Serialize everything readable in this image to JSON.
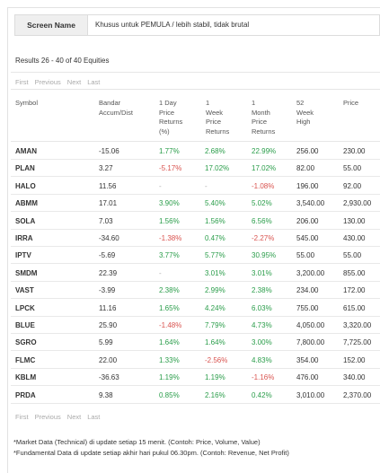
{
  "screen": {
    "label": "Screen Name",
    "value": "Khusus untuk PEMULA / lebih stabil, tidak brutal"
  },
  "results_text": "Results 26 - 40 of 40 Equities",
  "pager": {
    "first": "First",
    "previous": "Previous",
    "next": "Next",
    "last": "Last"
  },
  "columns": [
    [
      "Symbol"
    ],
    [
      "Bandar",
      "Accum/Dist"
    ],
    [
      "1 Day",
      "Price",
      "Returns",
      "(%)"
    ],
    [
      "1",
      "Week",
      "Price",
      "Returns"
    ],
    [
      "1",
      "Month",
      "Price",
      "Returns"
    ],
    [
      "52",
      "Week",
      "High"
    ],
    [
      "Price"
    ]
  ],
  "rows": [
    {
      "symbol": "AMAN",
      "bandar": "-15.06",
      "d1": "1.77%",
      "d1s": "pos",
      "w1": "2.68%",
      "w1s": "pos",
      "m1": "22.99%",
      "m1s": "pos",
      "high": "256.00",
      "price": "230.00"
    },
    {
      "symbol": "PLAN",
      "bandar": "3.27",
      "d1": "-5.17%",
      "d1s": "neg",
      "w1": "17.02%",
      "w1s": "pos",
      "m1": "17.02%",
      "m1s": "pos",
      "high": "82.00",
      "price": "55.00"
    },
    {
      "symbol": "HALO",
      "bandar": "11.56",
      "d1": "-",
      "d1s": "muted",
      "w1": "-",
      "w1s": "muted",
      "m1": "-1.08%",
      "m1s": "neg",
      "high": "196.00",
      "price": "92.00"
    },
    {
      "symbol": "ABMM",
      "bandar": "17.01",
      "d1": "3.90%",
      "d1s": "pos",
      "w1": "5.40%",
      "w1s": "pos",
      "m1": "5.02%",
      "m1s": "pos",
      "high": "3,540.00",
      "price": "2,930.00"
    },
    {
      "symbol": "SOLA",
      "bandar": "7.03",
      "d1": "1.56%",
      "d1s": "pos",
      "w1": "1.56%",
      "w1s": "pos",
      "m1": "6.56%",
      "m1s": "pos",
      "high": "206.00",
      "price": "130.00"
    },
    {
      "symbol": "IRRA",
      "bandar": "-34.60",
      "d1": "-1.38%",
      "d1s": "neg",
      "w1": "0.47%",
      "w1s": "pos",
      "m1": "-2.27%",
      "m1s": "neg",
      "high": "545.00",
      "price": "430.00"
    },
    {
      "symbol": "IPTV",
      "bandar": "-5.69",
      "d1": "3.77%",
      "d1s": "pos",
      "w1": "5.77%",
      "w1s": "pos",
      "m1": "30.95%",
      "m1s": "pos",
      "high": "55.00",
      "price": "55.00"
    },
    {
      "symbol": "SMDM",
      "bandar": "22.39",
      "d1": "-",
      "d1s": "muted",
      "w1": "3.01%",
      "w1s": "pos",
      "m1": "3.01%",
      "m1s": "pos",
      "high": "3,200.00",
      "price": "855.00"
    },
    {
      "symbol": "VAST",
      "bandar": "-3.99",
      "d1": "2.38%",
      "d1s": "pos",
      "w1": "2.99%",
      "w1s": "pos",
      "m1": "2.38%",
      "m1s": "pos",
      "high": "234.00",
      "price": "172.00"
    },
    {
      "symbol": "LPCK",
      "bandar": "11.16",
      "d1": "1.65%",
      "d1s": "pos",
      "w1": "4.24%",
      "w1s": "pos",
      "m1": "6.03%",
      "m1s": "pos",
      "high": "755.00",
      "price": "615.00"
    },
    {
      "symbol": "BLUE",
      "bandar": "25.90",
      "d1": "-1.48%",
      "d1s": "neg",
      "w1": "7.79%",
      "w1s": "pos",
      "m1": "4.73%",
      "m1s": "pos",
      "high": "4,050.00",
      "price": "3,320.00"
    },
    {
      "symbol": "SGRO",
      "bandar": "5.99",
      "d1": "1.64%",
      "d1s": "pos",
      "w1": "1.64%",
      "w1s": "pos",
      "m1": "3.00%",
      "m1s": "pos",
      "high": "7,800.00",
      "price": "7,725.00"
    },
    {
      "symbol": "FLMC",
      "bandar": "22.00",
      "d1": "1.33%",
      "d1s": "pos",
      "w1": "-2.56%",
      "w1s": "neg",
      "m1": "4.83%",
      "m1s": "pos",
      "high": "354.00",
      "price": "152.00"
    },
    {
      "symbol": "KBLM",
      "bandar": "-36.63",
      "d1": "1.19%",
      "d1s": "pos",
      "w1": "1.19%",
      "w1s": "pos",
      "m1": "-1.16%",
      "m1s": "neg",
      "high": "476.00",
      "price": "340.00"
    },
    {
      "symbol": "PRDA",
      "bandar": "9.38",
      "d1": "0.85%",
      "d1s": "pos",
      "w1": "2.16%",
      "w1s": "pos",
      "m1": "0.42%",
      "m1s": "pos",
      "high": "3,010.00",
      "price": "2,370.00"
    }
  ],
  "footnotes": [
    "*Market Data (Technical) di update setiap 15 menit. (Contoh: Price, Volume, Value)",
    "*Fundamental Data di update setiap akhir hari pukul 06.30pm. (Contoh: Revenue, Net Profit)"
  ],
  "colors": {
    "positive": "#2a9d4a",
    "negative": "#d9534f"
  }
}
